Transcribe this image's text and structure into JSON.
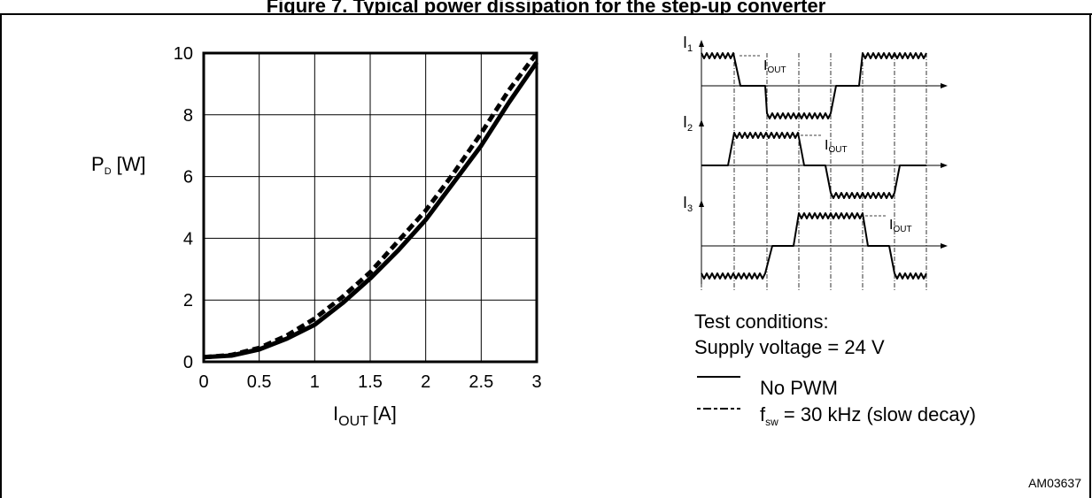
{
  "figure": {
    "caption_partial": "Figure 7. Typical power dissipation for the step-up converter",
    "code": "AM03637"
  },
  "chart_data": {
    "type": "line",
    "xlabel": "I",
    "xlabel_sub": "OUT",
    "xlabel_unit": "[A]",
    "ylabel": "P",
    "ylabel_sub": "D",
    "ylabel_unit": "[W]",
    "xlim": [
      0,
      3
    ],
    "ylim": [
      0,
      10
    ],
    "grid": true,
    "x_ticks": [
      "0",
      "0.5",
      "1",
      "1.5",
      "2",
      "2.5",
      "3"
    ],
    "y_ticks": [
      "0",
      "2",
      "4",
      "6",
      "8",
      "10"
    ],
    "series": [
      {
        "name": "No PWM",
        "style": "solid",
        "x": [
          0,
          0.25,
          0.5,
          0.75,
          1.0,
          1.25,
          1.5,
          1.75,
          2.0,
          2.25,
          2.5,
          2.75,
          3.0
        ],
        "y": [
          0.15,
          0.2,
          0.4,
          0.75,
          1.2,
          1.9,
          2.7,
          3.6,
          4.6,
          5.8,
          7.0,
          8.4,
          9.7
        ]
      },
      {
        "name": "f_sw = 30 kHz (slow decay)",
        "style": "dashed",
        "x": [
          0,
          0.25,
          0.5,
          0.75,
          1.0,
          1.25,
          1.5,
          1.75,
          2.0,
          2.25,
          2.5,
          2.75,
          3.0
        ],
        "y": [
          0.15,
          0.22,
          0.45,
          0.85,
          1.4,
          2.1,
          2.9,
          3.9,
          4.9,
          6.1,
          7.4,
          8.8,
          10.2
        ]
      }
    ]
  },
  "waveforms": {
    "labels": [
      {
        "main": "I",
        "sub": "1"
      },
      {
        "main": "I",
        "sub": "2"
      },
      {
        "main": "I",
        "sub": "3"
      }
    ],
    "iout_label": {
      "main": "I",
      "sub": "OUT"
    }
  },
  "conditions": {
    "heading": "Test conditions:",
    "supply": "Supply voltage = 24 V"
  },
  "legend": {
    "solid_label": "No PWM",
    "dashed_label_prefix": "f",
    "dashed_label_sub": "sw",
    "dashed_label_suffix": " = 30 kHz (slow decay)"
  }
}
